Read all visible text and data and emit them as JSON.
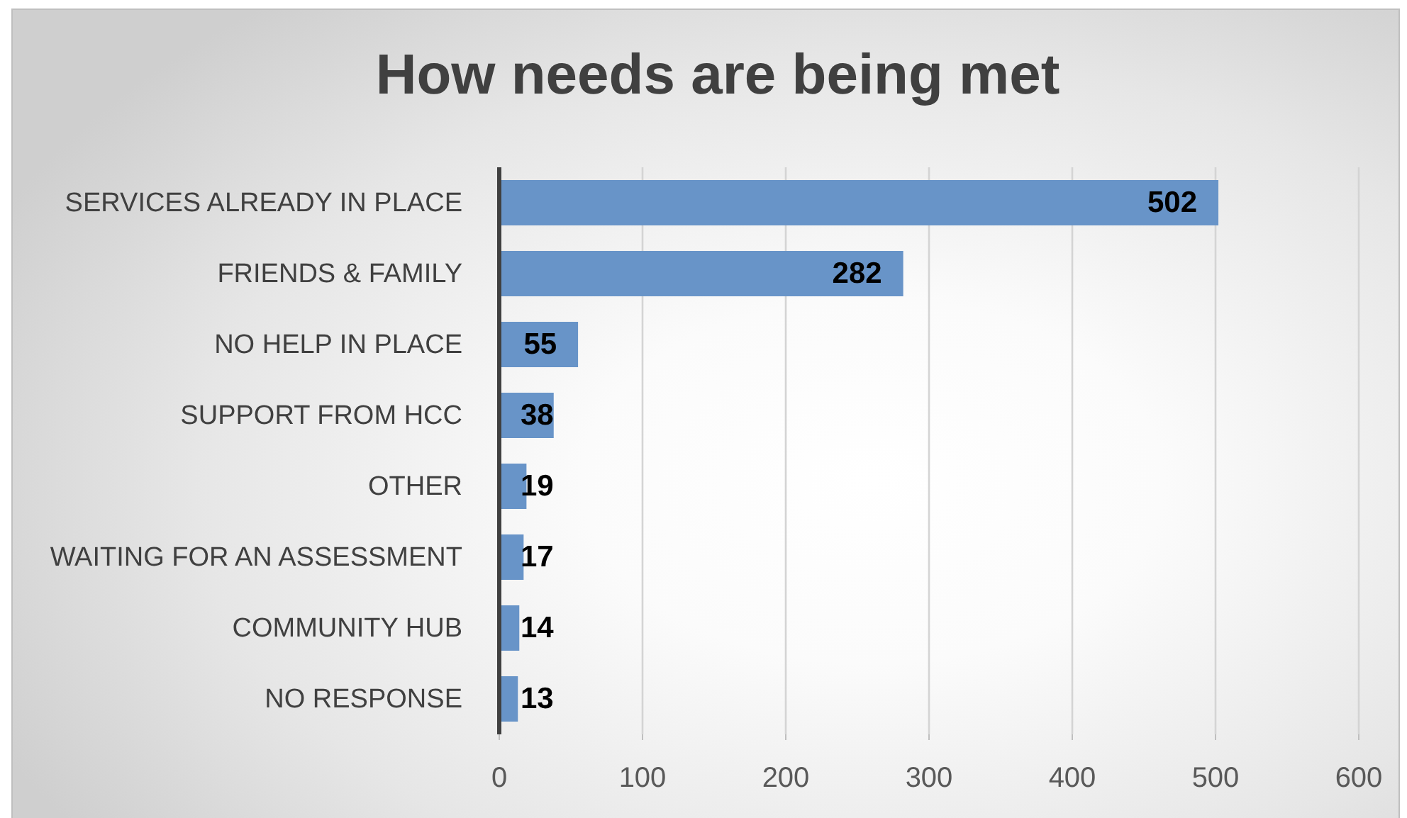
{
  "chart_data": {
    "type": "bar",
    "orientation": "horizontal",
    "title": "How needs are being met",
    "categories": [
      "SERVICES ALREADY IN PLACE",
      "FRIENDS & FAMILY",
      "NO HELP IN PLACE",
      "SUPPORT FROM HCC",
      "OTHER",
      "WAITING FOR AN ASSESSMENT",
      "COMMUNITY HUB",
      "NO RESPONSE"
    ],
    "values": [
      502,
      282,
      55,
      38,
      19,
      17,
      14,
      13
    ],
    "color": "#6894c8",
    "xlim": [
      0,
      600
    ],
    "xticks": [
      0,
      100,
      200,
      300,
      400,
      500,
      600
    ],
    "grid": "x",
    "data_labels": true
  }
}
